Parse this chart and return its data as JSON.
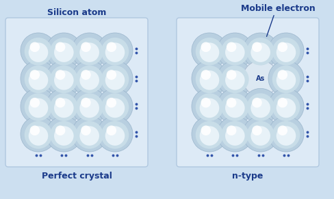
{
  "fig_bg": "#ccdff0",
  "panel_bg": "#ddeaf6",
  "panel_edge": "#b0c8e0",
  "sphere_outer": "#b8cfe0",
  "sphere_mid": "#c8dde8",
  "sphere_inner": "#e8f2f8",
  "sphere_highlight": "#ffffff",
  "sphere_edge": "#9ab5cc",
  "text_color": "#1a3a8a",
  "dot_color": "#3355aa",
  "as_bg": "#dce8f2",
  "as_edge": "#aabbd0",
  "title_left": "Silicon atom",
  "title_right": "Mobile electron",
  "label_left": "Perfect crystal",
  "label_right": "n-type",
  "as_label": "As",
  "as_row": 1,
  "as_col": 2,
  "grid_rows": 4,
  "grid_cols": 4,
  "figw": 4.88,
  "figh": 2.91
}
